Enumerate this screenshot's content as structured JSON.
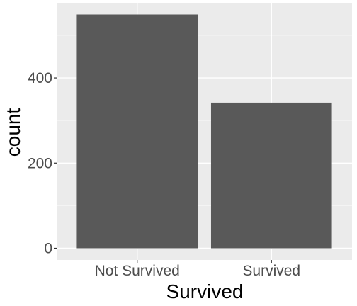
{
  "chart_data": {
    "type": "bar",
    "categories": [
      "Not Survived",
      "Survived"
    ],
    "values": [
      549,
      342
    ],
    "xlabel": "Survived",
    "ylabel": "count",
    "yticks": [
      0,
      200,
      400
    ],
    "ylim": [
      -27.45,
      576.45
    ],
    "grid": true,
    "legend": "none",
    "colors": {
      "bar": "#595959",
      "panel_background": "#ebebeb",
      "grid_major": "#ffffff",
      "grid_minor": "#f5f5f5",
      "tick_text": "#4d4d4d",
      "title_text": "#000000"
    }
  }
}
